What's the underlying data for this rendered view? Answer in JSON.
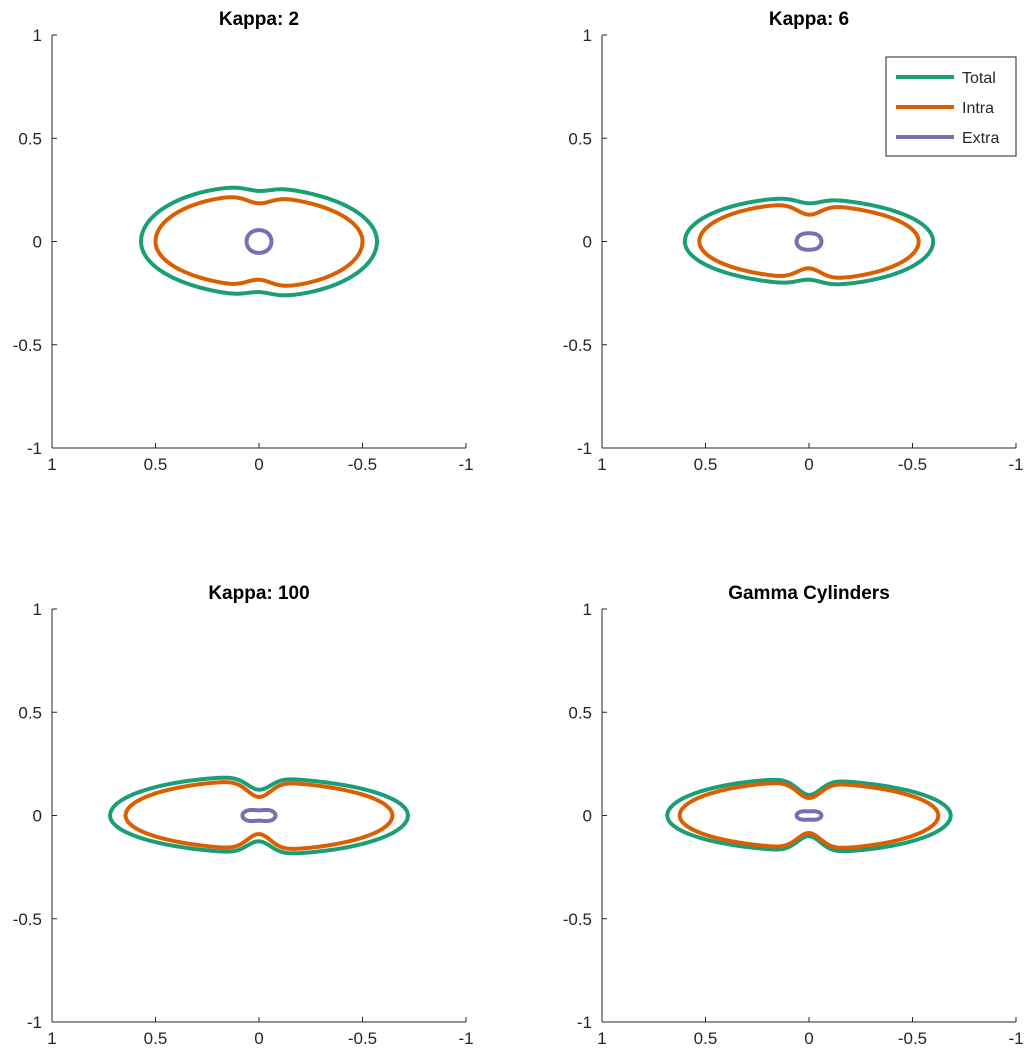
{
  "chart_data": [
    {
      "type": "line",
      "title": "Kappa: 2",
      "xlim": [
        1,
        -1
      ],
      "ylim": [
        -1,
        1
      ],
      "xticks": [
        "1",
        "0.5",
        "0",
        "-0.5",
        "-1"
      ],
      "yticks": [
        "1",
        "0.5",
        "0",
        "-0.5",
        "-1"
      ],
      "grid": false,
      "series": [
        {
          "name": "Total",
          "color": "#1b9e77",
          "shape": {
            "a": 0.57,
            "b": 0.265,
            "waist": 0.02,
            "asym": 0.035
          }
        },
        {
          "name": "Intra",
          "color": "#d95f02",
          "shape": {
            "a": 0.5,
            "b": 0.22,
            "waist": 0.035,
            "asym": 0.035
          }
        },
        {
          "name": "Extra",
          "color": "#7570b3",
          "shape": {
            "a": 0.06,
            "b": 0.065,
            "waist": 0.01,
            "asym": 0
          }
        }
      ]
    },
    {
      "type": "line",
      "title": "Kappa: 6",
      "xlim": [
        1,
        -1
      ],
      "ylim": [
        -1,
        1
      ],
      "xticks": [
        "1",
        "0.5",
        "0",
        "-0.5",
        "-1"
      ],
      "yticks": [
        "1",
        "0.5",
        "0",
        "-0.5",
        "-1"
      ],
      "grid": false,
      "legend": "top-right",
      "series": [
        {
          "name": "Total",
          "color": "#1b9e77",
          "shape": {
            "a": 0.6,
            "b": 0.21,
            "waist": 0.025,
            "asym": 0.035
          }
        },
        {
          "name": "Intra",
          "color": "#d95f02",
          "shape": {
            "a": 0.53,
            "b": 0.18,
            "waist": 0.05,
            "asym": 0.035
          }
        },
        {
          "name": "Extra",
          "color": "#7570b3",
          "shape": {
            "a": 0.06,
            "b": 0.055,
            "waist": 0.015,
            "asym": 0
          }
        }
      ]
    },
    {
      "type": "line",
      "title": "Kappa: 100",
      "xlim": [
        1,
        -1
      ],
      "ylim": [
        -1,
        1
      ],
      "xticks": [
        "1",
        "0.5",
        "0",
        "-0.5",
        "-1"
      ],
      "yticks": [
        "1",
        "0.5",
        "0",
        "-0.5",
        "-1"
      ],
      "grid": false,
      "series": [
        {
          "name": "Total",
          "color": "#1b9e77",
          "shape": {
            "a": 0.72,
            "b": 0.185,
            "waist": 0.06,
            "asym": 0.04
          }
        },
        {
          "name": "Intra",
          "color": "#d95f02",
          "shape": {
            "a": 0.645,
            "b": 0.165,
            "waist": 0.075,
            "asym": 0.03
          }
        },
        {
          "name": "Extra",
          "color": "#7570b3",
          "shape": {
            "a": 0.08,
            "b": 0.04,
            "waist": 0.015,
            "asym": 0
          }
        }
      ]
    },
    {
      "type": "line",
      "title": "Gamma Cylinders",
      "xlim": [
        1,
        -1
      ],
      "ylim": [
        -1,
        1
      ],
      "xticks": [
        "1",
        "0.5",
        "0",
        "-0.5",
        "-1"
      ],
      "yticks": [
        "1",
        "0.5",
        "0",
        "-0.5",
        "-1"
      ],
      "grid": false,
      "series": [
        {
          "name": "Total",
          "color": "#1b9e77",
          "shape": {
            "a": 0.685,
            "b": 0.175,
            "waist": 0.075,
            "asym": 0.04
          }
        },
        {
          "name": "Intra",
          "color": "#d95f02",
          "shape": {
            "a": 0.625,
            "b": 0.16,
            "waist": 0.075,
            "asym": 0.03
          }
        },
        {
          "name": "Extra",
          "color": "#7570b3",
          "shape": {
            "a": 0.06,
            "b": 0.03,
            "waist": 0.01,
            "asym": 0
          }
        }
      ]
    }
  ]
}
